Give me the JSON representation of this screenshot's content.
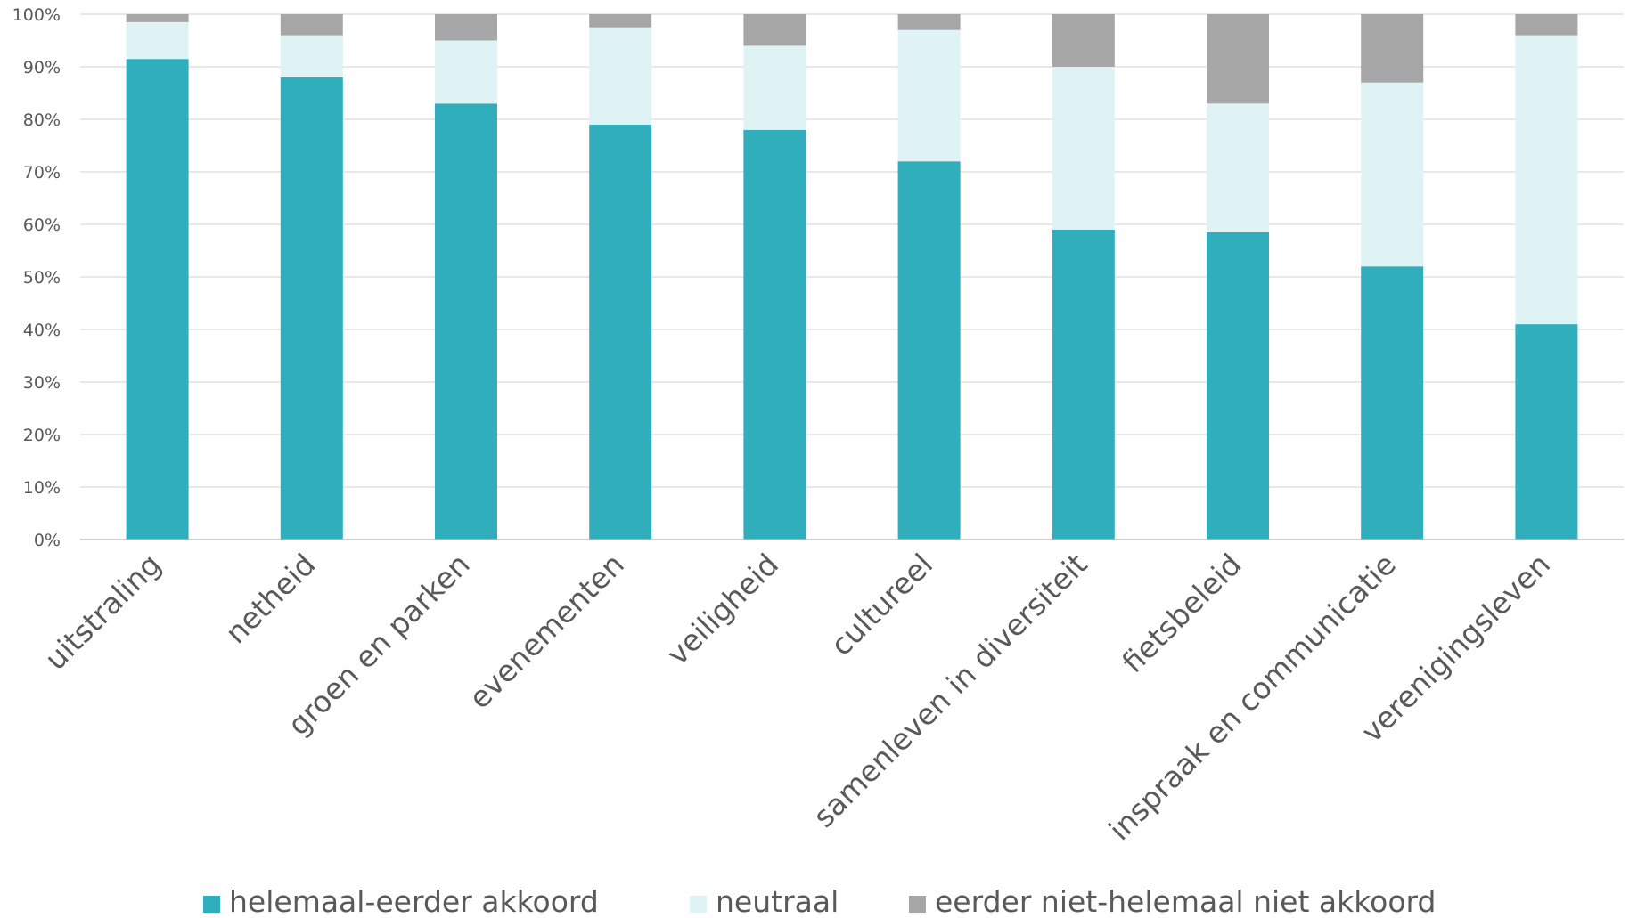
{
  "chart_data": {
    "type": "bar",
    "stacked": true,
    "percent": true,
    "categories": [
      "uitstraling",
      "netheid",
      "groen en parken",
      "evenementen",
      "veiligheid",
      "cultureel",
      "samenleven in diversiteit",
      "fietsbeleid",
      "inspraak en communicatie",
      "verenigingsleven"
    ],
    "series": [
      {
        "name": "helemaal-eerder akkoord",
        "color": "#31aebc",
        "values": [
          91.5,
          88,
          83,
          79,
          78,
          72,
          59,
          58.5,
          52,
          41
        ]
      },
      {
        "name": "neutraal",
        "color": "#dff3f5",
        "values": [
          7,
          8,
          12,
          18.5,
          16,
          25,
          31,
          24.5,
          35,
          55
        ]
      },
      {
        "name": "eerder niet-helemaal niet akkoord",
        "color": "#a6a6a6",
        "values": [
          1.5,
          4,
          5,
          2.5,
          6,
          3,
          10,
          17,
          13,
          4
        ]
      }
    ],
    "yticks": [
      "0%",
      "10%",
      "20%",
      "30%",
      "40%",
      "50%",
      "60%",
      "70%",
      "80%",
      "90%",
      "100%"
    ],
    "ylim": [
      0,
      100
    ],
    "grid": true,
    "legend_position": "bottom",
    "title": "",
    "xlabel": "",
    "ylabel": ""
  }
}
